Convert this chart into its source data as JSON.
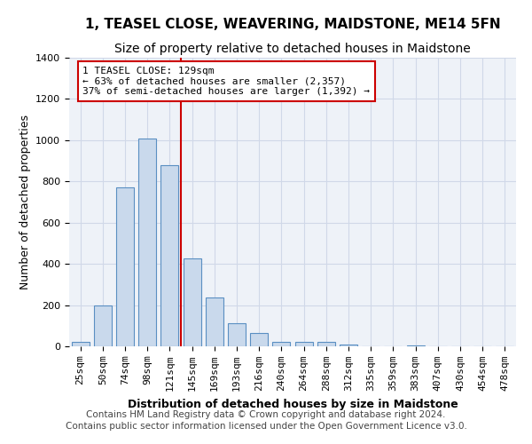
{
  "title": "1, TEASEL CLOSE, WEAVERING, MAIDSTONE, ME14 5FN",
  "subtitle": "Size of property relative to detached houses in Maidstone",
  "xlabel": "Distribution of detached houses by size in Maidstone",
  "ylabel": "Number of detached properties",
  "categories": [
    "25sqm",
    "50sqm",
    "74sqm",
    "98sqm",
    "121sqm",
    "145sqm",
    "169sqm",
    "193sqm",
    "216sqm",
    "240sqm",
    "264sqm",
    "288sqm",
    "312sqm",
    "335sqm",
    "359sqm",
    "383sqm",
    "407sqm",
    "430sqm",
    "454sqm",
    "478sqm"
  ],
  "values": [
    20,
    200,
    770,
    1010,
    880,
    425,
    235,
    110,
    65,
    20,
    20,
    20,
    10,
    0,
    0,
    5,
    0,
    0,
    0,
    0
  ],
  "bar_color": "#c9d9ec",
  "bar_edge_color": "#5a8fc2",
  "bar_width": 0.8,
  "vline_x": 4.5,
  "vline_color": "#cc0000",
  "annotation_line1": "1 TEASEL CLOSE: 129sqm",
  "annotation_line2": "← 63% of detached houses are smaller (2,357)",
  "annotation_line3": "37% of semi-detached houses are larger (1,392) →",
  "annotation_box_color": "#ffffff",
  "annotation_box_edge": "#cc0000",
  "ylim": [
    0,
    1400
  ],
  "yticks": [
    0,
    200,
    400,
    600,
    800,
    1000,
    1200,
    1400
  ],
  "grid_color": "#d0d8e8",
  "bg_color": "#eef2f8",
  "footer1": "Contains HM Land Registry data © Crown copyright and database right 2024.",
  "footer2": "Contains public sector information licensed under the Open Government Licence v3.0.",
  "title_fontsize": 11,
  "subtitle_fontsize": 10,
  "xlabel_fontsize": 9,
  "ylabel_fontsize": 9,
  "tick_fontsize": 8,
  "footer_fontsize": 7.5
}
